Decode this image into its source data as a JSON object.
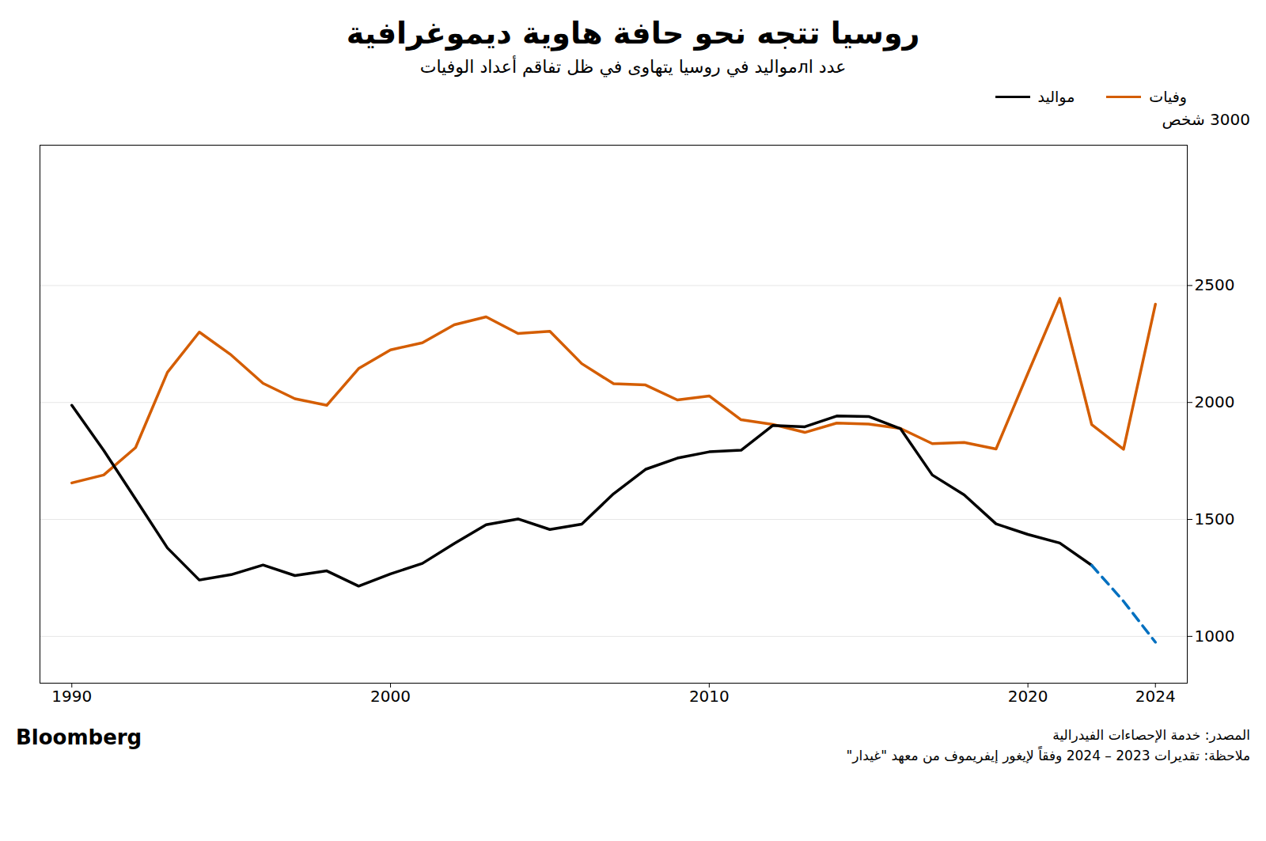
{
  "chart_data": {
    "type": "line",
    "title": "روسيا تتجه نحو حافة هاوية ديموغرافية",
    "subtitle": "عدد اлمواليد في روسيا يتهاوى في ظل تفاقم أعداد الوفيات",
    "y_label": "3000 شخص",
    "source": "المصدر: خدمة الإحصاءات الفيدرالية",
    "note": "ملاحظة: تقديرات 2023 – 2024 وفقاً لإيغور إيفريموف من معهد \"غيدار\"",
    "branding": "Bloomberg",
    "series": [
      {
        "name": "وفيات",
        "color": "#d45d00",
        "line_style": "solid",
        "x": [
          1990,
          1991,
          1992,
          1993,
          1994,
          1995,
          1996,
          1997,
          1998,
          1999,
          2000,
          2001,
          2002,
          2003,
          2004,
          2005,
          2006,
          2007,
          2008,
          2009,
          2010,
          2011,
          2012,
          2013,
          2014,
          2015,
          2016,
          2017,
          2018,
          2019,
          2020,
          2021,
          2022,
          2023,
          2024
        ],
        "values": [
          1656,
          1690,
          1807,
          2129,
          2301,
          2203,
          2082,
          2016,
          1988,
          2145,
          2225,
          2255,
          2332,
          2366,
          2295,
          2304,
          2166,
          2080,
          2075,
          2011,
          2028,
          1926,
          1906,
          1872,
          1912,
          1908,
          1889,
          1824,
          1829,
          1801,
          2125,
          2445,
          1906,
          1800,
          2420
        ]
      },
      {
        "name": "مواليد",
        "color": "#000000",
        "line_style": "solid",
        "x": [
          1990,
          1991,
          1992,
          1993,
          1994,
          1995,
          1996,
          1997,
          1998,
          1999,
          2000,
          2001,
          2002,
          2003,
          2004,
          2005,
          2006,
          2007,
          2008,
          2009,
          2010,
          2011,
          2012,
          2013,
          2014,
          2015,
          2016,
          2017,
          2018,
          2019,
          2020,
          2021,
          2022
        ],
        "values": [
          1988,
          1795,
          1587,
          1378,
          1241,
          1264,
          1305,
          1260,
          1280,
          1215,
          1267,
          1312,
          1397,
          1477,
          1502,
          1457,
          1480,
          1610,
          1714,
          1762,
          1789,
          1796,
          1902,
          1896,
          1942,
          1940,
          1888,
          1690,
          1605,
          1481,
          1436,
          1399,
          1304
        ]
      },
      {
        "color": "#0070c0",
        "line_style": "dashed",
        "x": [
          2022,
          2023,
          2024
        ],
        "values": [
          1304,
          1150,
          975
        ]
      }
    ],
    "xlim": [
      1989,
      2025
    ],
    "xticks": [
      1990,
      2000,
      2010,
      2020,
      2024
    ],
    "ylim": [
      800,
      3100
    ],
    "yticks": [
      1000,
      1500,
      2000,
      2500
    ],
    "grid": true,
    "legend": "top-right"
  }
}
